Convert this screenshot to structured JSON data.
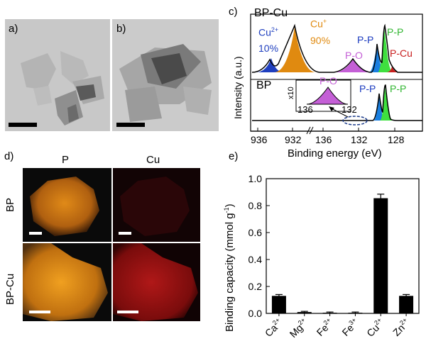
{
  "panels": {
    "a": {
      "label": "a)"
    },
    "b": {
      "label": "b)"
    },
    "c": {
      "label": "c)"
    },
    "d": {
      "label": "d)"
    },
    "e": {
      "label": "e)"
    }
  },
  "xps": {
    "top_sample": "BP-Cu",
    "bottom_sample": "BP",
    "cu2_label": "Cu",
    "cu2_sup": "2+",
    "cu2_pct": "10%",
    "cu1_label": "Cu",
    "cu1_sup": "+",
    "cu1_pct": "90%",
    "po_label": "P-O",
    "pp_label_1": "P-P",
    "pp_label_2": "P-P",
    "pcu_label": "P-Cu",
    "inset_factor": "x10",
    "inset_po": "P-O",
    "inset_tick_left": "136",
    "inset_tick_right": "132",
    "bp_pp_1": "P-P",
    "bp_pp_2": "P-P",
    "ylabel": "Intensity (a.u.)",
    "xlabel": "Binding energy (eV)",
    "xticks": [
      "936",
      "932",
      "136",
      "132",
      "128"
    ],
    "colors": {
      "cu2": "#1f3fbf",
      "cu1": "#e08a10",
      "po": "#c45fd6",
      "pp_blue": "#1a7fe0",
      "pp_green": "#3fe03f",
      "pcu": "#c81e1e"
    }
  },
  "maps": {
    "col_p": "P",
    "col_cu": "Cu",
    "row_bp": "BP",
    "row_bpcu": "BP-Cu"
  },
  "chart_data": {
    "type": "bar",
    "categories": [
      "Ca2+",
      "Mg2+",
      "Fe2+",
      "Fe3+",
      "Cu2+",
      "Zn2+"
    ],
    "category_base": [
      "Ca",
      "Mg",
      "Fe",
      "Fe",
      "Cu",
      "Zn"
    ],
    "category_sup": [
      "2+",
      "2+",
      "2+",
      "3+",
      "2+",
      "2+"
    ],
    "values": [
      0.13,
      0.01,
      0.005,
      0.005,
      0.855,
      0.13
    ],
    "errors": [
      0.01,
      0.005,
      0.005,
      0.005,
      0.03,
      0.01
    ],
    "ylabel": "Binding capacity (mmol g",
    "ylabel_sup": "-1",
    "ylabel_end": ")",
    "ylim": [
      0.0,
      1.0
    ],
    "yticks": [
      "0.0",
      "0.2",
      "0.4",
      "0.6",
      "0.8",
      "1.0"
    ]
  }
}
